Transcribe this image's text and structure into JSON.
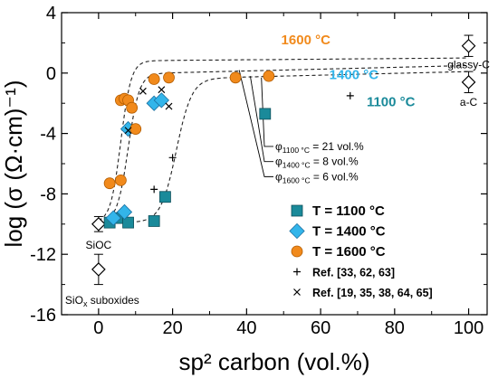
{
  "chart_data": {
    "type": "scatter",
    "xlabel": "sp² carbon (vol.%)",
    "ylabel": "log (σ (Ω·cm)⁻¹)",
    "xlim": [
      -10,
      105
    ],
    "ylim": [
      -16,
      4
    ],
    "xticks": [
      0,
      20,
      40,
      60,
      80,
      100
    ],
    "yticks": [
      -16,
      -12,
      -8,
      -4,
      0,
      4
    ],
    "legend_position": "bottom-right",
    "grid": false,
    "series": [
      {
        "name": "T = 1100 °C",
        "marker": "square",
        "color": "#1a8a9a",
        "points": [
          [
            3,
            -9.9
          ],
          [
            6,
            -9.6
          ],
          [
            8,
            -9.9
          ],
          [
            15,
            -9.8
          ],
          [
            18,
            -8.2
          ],
          [
            45,
            -2.7
          ]
        ]
      },
      {
        "name": "T = 1400 °C",
        "marker": "diamond",
        "color": "#33b5ea",
        "points": [
          [
            4,
            -9.6
          ],
          [
            7,
            -9.2
          ],
          [
            8,
            -3.7
          ],
          [
            15,
            -2.0
          ],
          [
            17,
            -1.8
          ]
        ]
      },
      {
        "name": "T = 1600 °C",
        "marker": "circle",
        "color": "#f18a1c",
        "points": [
          [
            3,
            -7.3
          ],
          [
            6,
            -7.1
          ],
          [
            6,
            -1.8
          ],
          [
            7,
            -1.7
          ],
          [
            8,
            -1.8
          ],
          [
            9,
            -2.3
          ],
          [
            10,
            -3.7
          ],
          [
            15,
            -0.4
          ],
          [
            19,
            -0.3
          ],
          [
            37,
            -0.3
          ],
          [
            46,
            -0.2
          ]
        ]
      },
      {
        "name": "Ref. [33, 62, 63]",
        "marker": "plus",
        "color": "#000000",
        "points": [
          [
            15,
            -7.7
          ],
          [
            20,
            -5.6
          ],
          [
            68,
            -1.5
          ]
        ]
      },
      {
        "name": "Ref. [19, 35, 38, 64, 65]",
        "marker": "x",
        "color": "#000000",
        "points": [
          [
            8,
            -3.8
          ],
          [
            12,
            -1.2
          ],
          [
            17,
            -1.1
          ],
          [
            19,
            -2.2
          ]
        ]
      }
    ],
    "reference_points": [
      {
        "label": "SiOC",
        "x": 0,
        "y": -10.0,
        "err": 0.5
      },
      {
        "label_main": "SiO",
        "label_sub": "x",
        "label_rest": " suboxides",
        "x": 0,
        "y": -13.0,
        "err": 1.0
      },
      {
        "label": "glassy-C",
        "x": 100,
        "y": 1.8,
        "err": 0.7
      },
      {
        "label": "a-C",
        "x": 100,
        "y": -0.6,
        "err": 0.7
      }
    ],
    "fit_curves": [
      {
        "temperature": "1600 °C",
        "threshold": 6,
        "low": -9.9,
        "high": 1.0,
        "slope": 0.2,
        "width": 1.4,
        "x_end": 100,
        "color": "#f18a1c"
      },
      {
        "temperature": "1400 °C",
        "threshold": 8,
        "low": -9.9,
        "high": 0.5,
        "slope": 0.6,
        "width": 1.5,
        "x_end": 100,
        "color": "#33b5ea"
      },
      {
        "temperature": "1100 °C",
        "threshold": 21,
        "low": -9.9,
        "high": 0.1,
        "slope": 0.6,
        "width": 2.1,
        "x_end": 100,
        "color": "#1a8a9a"
      }
    ],
    "annotations": {
      "curve_labels": [
        {
          "text": "1600 °C",
          "color": "#f18a1c",
          "x": 56,
          "y": 1.9
        },
        {
          "text": "1400 °C",
          "color": "#33b5ea",
          "x": 69,
          "y": -0.4
        },
        {
          "text": "1100 °C",
          "color": "#1a8a9a",
          "x": 79,
          "y": -2.2
        }
      ],
      "thresholds": [
        {
          "main": "φ",
          "sub": "1100 °C",
          "rest": " = 21 vol.%"
        },
        {
          "main": "φ",
          "sub": "1400 °C",
          "rest": " = 8 vol.%"
        },
        {
          "main": "φ",
          "sub": "1600 °C",
          "rest": " = 6 vol.%"
        }
      ]
    }
  }
}
